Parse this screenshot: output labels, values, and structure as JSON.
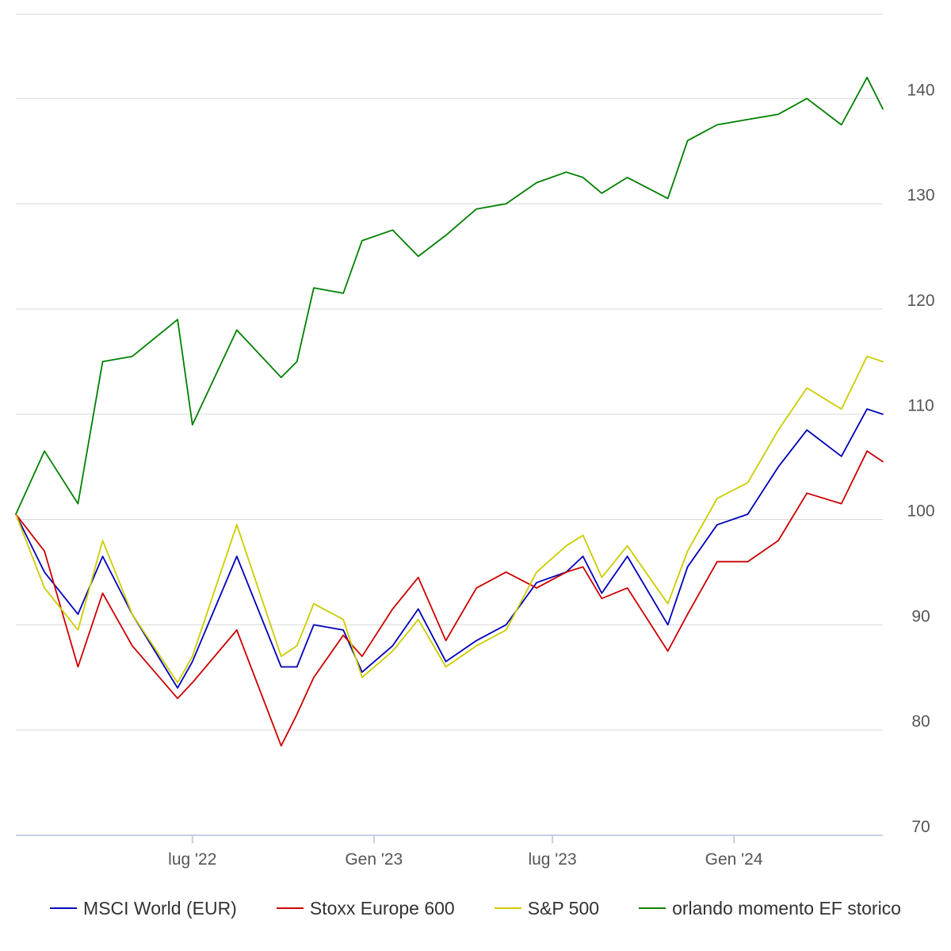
{
  "chart_data": {
    "type": "line",
    "title": "",
    "xlabel": "",
    "ylabel": "",
    "ylim": [
      70,
      148
    ],
    "y_ticks": [
      70,
      80,
      90,
      100,
      110,
      120,
      130,
      140
    ],
    "y_axis_side": "right",
    "x_tick_labels": [
      "lug '22",
      "Gen '23",
      "lug '23",
      "Gen '24"
    ],
    "x_tick_dates": [
      "2022-07-01",
      "2023-01-01",
      "2023-07-01",
      "2024-01-01"
    ],
    "x_range": [
      "2022-01-03",
      "2024-05-31"
    ],
    "grid": "horizontal",
    "legend_position": "bottom",
    "series": [
      {
        "name": "MSCI World (EUR)",
        "color": "#0000bb",
        "points": [
          [
            "2022-01-03",
            100.5
          ],
          [
            "2022-02-01",
            95.0
          ],
          [
            "2022-03-07",
            91.0
          ],
          [
            "2022-04-01",
            96.5
          ],
          [
            "2022-05-01",
            91.0
          ],
          [
            "2022-06-16",
            84.0
          ],
          [
            "2022-07-01",
            86.5
          ],
          [
            "2022-08-15",
            96.5
          ],
          [
            "2022-09-29",
            86.0
          ],
          [
            "2022-10-15",
            86.0
          ],
          [
            "2022-11-01",
            90.0
          ],
          [
            "2022-12-01",
            89.5
          ],
          [
            "2022-12-20",
            85.5
          ],
          [
            "2023-01-20",
            88.0
          ],
          [
            "2023-02-15",
            91.5
          ],
          [
            "2023-03-15",
            86.5
          ],
          [
            "2023-04-15",
            88.5
          ],
          [
            "2023-05-15",
            90.0
          ],
          [
            "2023-06-15",
            94.0
          ],
          [
            "2023-07-15",
            95.0
          ],
          [
            "2023-08-01",
            96.5
          ],
          [
            "2023-08-20",
            93.0
          ],
          [
            "2023-09-15",
            96.5
          ],
          [
            "2023-10-26",
            90.0
          ],
          [
            "2023-11-15",
            95.5
          ],
          [
            "2023-12-15",
            99.5
          ],
          [
            "2024-01-15",
            100.5
          ],
          [
            "2024-02-15",
            105.0
          ],
          [
            "2024-03-15",
            108.5
          ],
          [
            "2024-04-19",
            106.0
          ],
          [
            "2024-05-15",
            110.5
          ],
          [
            "2024-05-31",
            110.0
          ]
        ]
      },
      {
        "name": "Stoxx Europe 600",
        "color": "#cc0000",
        "points": [
          [
            "2022-01-03",
            100.5
          ],
          [
            "2022-02-01",
            97.0
          ],
          [
            "2022-03-07",
            86.0
          ],
          [
            "2022-04-01",
            93.0
          ],
          [
            "2022-05-01",
            88.0
          ],
          [
            "2022-06-16",
            83.0
          ],
          [
            "2022-07-01",
            84.5
          ],
          [
            "2022-08-15",
            89.5
          ],
          [
            "2022-09-29",
            78.5
          ],
          [
            "2022-10-15",
            81.5
          ],
          [
            "2022-11-01",
            85.0
          ],
          [
            "2022-12-01",
            89.0
          ],
          [
            "2022-12-20",
            87.0
          ],
          [
            "2023-01-20",
            91.5
          ],
          [
            "2023-02-15",
            94.5
          ],
          [
            "2023-03-15",
            88.5
          ],
          [
            "2023-04-15",
            93.5
          ],
          [
            "2023-05-15",
            95.0
          ],
          [
            "2023-06-15",
            93.5
          ],
          [
            "2023-07-15",
            95.0
          ],
          [
            "2023-08-01",
            95.5
          ],
          [
            "2023-08-20",
            92.5
          ],
          [
            "2023-09-15",
            93.5
          ],
          [
            "2023-10-26",
            87.5
          ],
          [
            "2023-11-15",
            91.0
          ],
          [
            "2023-12-15",
            96.0
          ],
          [
            "2024-01-15",
            96.0
          ],
          [
            "2024-02-15",
            98.0
          ],
          [
            "2024-03-15",
            102.5
          ],
          [
            "2024-04-19",
            101.5
          ],
          [
            "2024-05-15",
            106.5
          ],
          [
            "2024-05-31",
            105.5
          ]
        ]
      },
      {
        "name": "S&P 500",
        "color": "#cccc00",
        "points": [
          [
            "2022-01-03",
            100.5
          ],
          [
            "2022-02-01",
            93.5
          ],
          [
            "2022-03-07",
            89.5
          ],
          [
            "2022-04-01",
            98.0
          ],
          [
            "2022-05-01",
            91.0
          ],
          [
            "2022-06-16",
            84.5
          ],
          [
            "2022-07-01",
            87.0
          ],
          [
            "2022-08-15",
            99.5
          ],
          [
            "2022-09-29",
            87.0
          ],
          [
            "2022-10-15",
            88.0
          ],
          [
            "2022-11-01",
            92.0
          ],
          [
            "2022-12-01",
            90.5
          ],
          [
            "2022-12-20",
            85.0
          ],
          [
            "2023-01-20",
            87.5
          ],
          [
            "2023-02-15",
            90.5
          ],
          [
            "2023-03-15",
            86.0
          ],
          [
            "2023-04-15",
            88.0
          ],
          [
            "2023-05-15",
            89.5
          ],
          [
            "2023-06-15",
            95.0
          ],
          [
            "2023-07-15",
            97.5
          ],
          [
            "2023-08-01",
            98.5
          ],
          [
            "2023-08-20",
            94.5
          ],
          [
            "2023-09-15",
            97.5
          ],
          [
            "2023-10-26",
            92.0
          ],
          [
            "2023-11-15",
            97.0
          ],
          [
            "2023-12-15",
            102.0
          ],
          [
            "2024-01-15",
            103.5
          ],
          [
            "2024-02-15",
            108.5
          ],
          [
            "2024-03-15",
            112.5
          ],
          [
            "2024-04-19",
            110.5
          ],
          [
            "2024-05-15",
            115.5
          ],
          [
            "2024-05-31",
            115.0
          ]
        ]
      },
      {
        "name": "orlando momento EF storico",
        "color": "#008000",
        "points": [
          [
            "2022-01-03",
            100.5
          ],
          [
            "2022-02-01",
            106.5
          ],
          [
            "2022-03-07",
            101.5
          ],
          [
            "2022-04-01",
            115.0
          ],
          [
            "2022-05-01",
            115.5
          ],
          [
            "2022-06-16",
            119.0
          ],
          [
            "2022-07-01",
            109.0
          ],
          [
            "2022-08-15",
            118.0
          ],
          [
            "2022-09-29",
            113.5
          ],
          [
            "2022-10-15",
            115.0
          ],
          [
            "2022-11-01",
            122.0
          ],
          [
            "2022-12-01",
            121.5
          ],
          [
            "2022-12-20",
            126.5
          ],
          [
            "2023-01-20",
            127.5
          ],
          [
            "2023-02-15",
            125.0
          ],
          [
            "2023-03-15",
            127.0
          ],
          [
            "2023-04-15",
            129.5
          ],
          [
            "2023-05-15",
            130.0
          ],
          [
            "2023-06-15",
            132.0
          ],
          [
            "2023-07-15",
            133.0
          ],
          [
            "2023-08-01",
            132.5
          ],
          [
            "2023-08-20",
            131.0
          ],
          [
            "2023-09-15",
            132.5
          ],
          [
            "2023-10-26",
            130.5
          ],
          [
            "2023-11-15",
            136.0
          ],
          [
            "2023-12-15",
            137.5
          ],
          [
            "2024-01-15",
            138.0
          ],
          [
            "2024-02-15",
            138.5
          ],
          [
            "2024-03-15",
            140.0
          ],
          [
            "2024-04-19",
            137.5
          ],
          [
            "2024-05-15",
            142.0
          ],
          [
            "2024-05-31",
            139.0
          ]
        ]
      }
    ]
  }
}
